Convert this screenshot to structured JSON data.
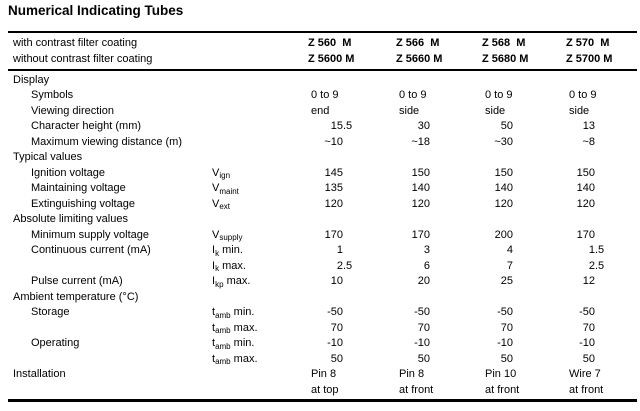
{
  "title": "Numerical Indicating Tubes",
  "header": {
    "rows": [
      {
        "label": "with contrast filter coating",
        "models": [
          "Z 560  M",
          "Z 566  M",
          "Z 568  M",
          "Z 570  M"
        ]
      },
      {
        "label": "without contrast filter coating",
        "models": [
          "Z 5600 M",
          "Z 5660 M",
          "Z 5680 M",
          "Z 5700 M"
        ]
      }
    ]
  },
  "rows": [
    {
      "label": "Display",
      "level": 0
    },
    {
      "label": "Symbols",
      "level": 1,
      "vtype": "text",
      "values": [
        "0 to 9",
        "0 to 9",
        "0 to 9",
        "0 to 9"
      ]
    },
    {
      "label": "Viewing direction",
      "level": 1,
      "vtype": "text",
      "values": [
        "end",
        "side",
        "side",
        "side"
      ]
    },
    {
      "label": "Character height (mm)",
      "level": 1,
      "vtype": "num",
      "values": [
        "15.5",
        "30",
        "50",
        "13"
      ]
    },
    {
      "label": "Maximum viewing distance (m)",
      "level": 1,
      "vtype": "num",
      "values": [
        "~10",
        "~18",
        "~30",
        "~8"
      ]
    },
    {
      "label": "Typical values",
      "level": 0
    },
    {
      "label": "Ignition voltage",
      "level": 1,
      "vtype": "num",
      "sym": {
        "base": "V",
        "sub": "ign",
        "suffix": ""
      },
      "values": [
        "145",
        "150",
        "150",
        "150"
      ]
    },
    {
      "label": "Maintaining voltage",
      "level": 1,
      "vtype": "num",
      "sym": {
        "base": "V",
        "sub": "maint",
        "suffix": ""
      },
      "values": [
        "135",
        "140",
        "140",
        "140"
      ]
    },
    {
      "label": "Extinguishing voltage",
      "level": 1,
      "vtype": "num",
      "sym": {
        "base": "V",
        "sub": "ext",
        "suffix": ""
      },
      "values": [
        "120",
        "120",
        "120",
        "120"
      ]
    },
    {
      "label": "Absolute limiting values",
      "level": 0
    },
    {
      "label": "Minimum supply voltage",
      "level": 1,
      "vtype": "num",
      "sym": {
        "base": "V",
        "sub": "supply",
        "suffix": ""
      },
      "values": [
        "170",
        "170",
        "200",
        "170"
      ]
    },
    {
      "label": "Continuous current (mA)",
      "level": 1,
      "vtype": "num",
      "sym": {
        "base": "I",
        "sub": "k",
        "suffix": " min."
      },
      "values": [
        "1",
        "3",
        "4",
        "1.5"
      ]
    },
    {
      "label": "",
      "level": 1,
      "vtype": "num",
      "sym": {
        "base": "I",
        "sub": "k",
        "suffix": " max."
      },
      "values": [
        "2.5",
        "6",
        "7",
        "2.5"
      ]
    },
    {
      "label": "Pulse current (mA)",
      "level": 1,
      "vtype": "num",
      "sym": {
        "base": "I",
        "sub": "kp",
        "suffix": " max."
      },
      "values": [
        "10",
        "20",
        "25",
        "12"
      ]
    },
    {
      "label": "Ambient temperature (°C)",
      "level": 0
    },
    {
      "label": "Storage",
      "level": 1,
      "vtype": "num",
      "sym": {
        "base": "t",
        "sub": "amb",
        "suffix": " min."
      },
      "values": [
        "-50",
        "-50",
        "-50",
        "-50"
      ]
    },
    {
      "label": "",
      "level": 1,
      "vtype": "num",
      "sym": {
        "base": "t",
        "sub": "amb",
        "suffix": " max."
      },
      "values": [
        "70",
        "70",
        "70",
        "70"
      ]
    },
    {
      "label": "Operating",
      "level": 1,
      "vtype": "num",
      "sym": {
        "base": "t",
        "sub": "amb",
        "suffix": " min."
      },
      "values": [
        "-10",
        "-10",
        "-10",
        "-10"
      ]
    },
    {
      "label": "",
      "level": 1,
      "vtype": "num",
      "sym": {
        "base": "t",
        "sub": "amb",
        "suffix": " max."
      },
      "values": [
        "50",
        "50",
        "50",
        "50"
      ]
    },
    {
      "label": "Installation",
      "level": 0,
      "vtype": "text",
      "values": [
        "Pin 8",
        "Pin 8",
        "Pin 10",
        "Wire 7"
      ]
    },
    {
      "label": "",
      "level": 0,
      "vtype": "text",
      "values": [
        "at top",
        "at front",
        "at front",
        "at front"
      ]
    }
  ]
}
